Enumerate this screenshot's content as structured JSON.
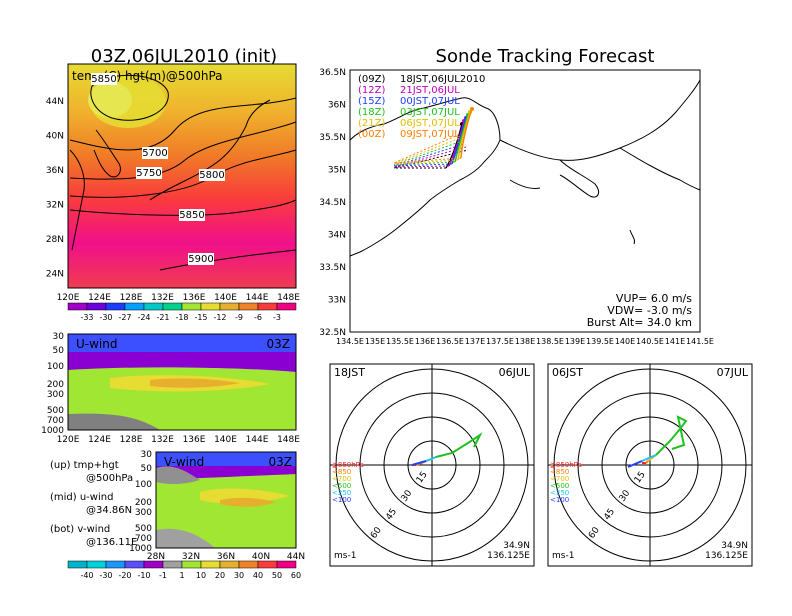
{
  "title_left": "03Z,06JUL2010 (init)",
  "title_right": "Sonde Tracking Forecast",
  "temp_map": {
    "label": "temp(C) hgt(m)@500hPa",
    "lat_ticks": [
      "44N",
      "40N",
      "36N",
      "32N",
      "28N",
      "24N"
    ],
    "lon_ticks": [
      "120E",
      "124E",
      "128E",
      "132E",
      "136E",
      "140E",
      "144E",
      "148E"
    ],
    "contour_labels": [
      "5850",
      "5700",
      "5750",
      "5800",
      "5850",
      "5900"
    ],
    "colorbar_labels": [
      "-33",
      "-30",
      "-27",
      "-24",
      "-21",
      "-18",
      "-15",
      "-12",
      "-9",
      "-6",
      "-3"
    ],
    "colorbar_colors": [
      "#a000c8",
      "#6e00dc",
      "#1e3cff",
      "#00a0ff",
      "#00c8c8",
      "#00d28c",
      "#a0e632",
      "#e6dc32",
      "#e6af2d",
      "#f08228",
      "#fa3c3c",
      "#f00082"
    ]
  },
  "uwind": {
    "label": "U-wind",
    "time": "03Z",
    "p_ticks": [
      "30",
      "50",
      "100",
      "200",
      "300",
      "500",
      "700",
      "1000"
    ],
    "lon_ticks": [
      "120E",
      "124E",
      "128E",
      "132E",
      "136E",
      "140E",
      "144E",
      "148E"
    ]
  },
  "vwind": {
    "label": "V-wind",
    "time": "03Z",
    "p_ticks": [
      "30",
      "50",
      "100",
      "200",
      "300",
      "500",
      "700",
      "1000"
    ],
    "lat_ticks": [
      "28N",
      "32N",
      "36N",
      "40N",
      "44N"
    ]
  },
  "legend_notes": [
    {
      "a": "(up) tmp+hgt",
      "b": "@500hPa"
    },
    {
      "a": "(mid) u-wind",
      "b": "@34.86N"
    },
    {
      "a": "(bot) v-wind",
      "b": "@136.11E"
    }
  ],
  "wind_colorbar": {
    "labels": [
      "-40",
      "-30",
      "-20",
      "-10",
      "-1",
      "1",
      "10",
      "20",
      "30",
      "40",
      "50",
      "60"
    ],
    "colors": [
      "#00b4c8",
      "#00d2dc",
      "#1e96ff",
      "#5a50ff",
      "#a000c8",
      "#a0a0a0",
      "#a0e632",
      "#e6dc32",
      "#e6af2d",
      "#f08228",
      "#fa3c3c",
      "#f00082"
    ]
  },
  "track_map": {
    "lat_ticks": [
      "36.5N",
      "36N",
      "35.5N",
      "35N",
      "34.5N",
      "34N",
      "33.5N",
      "33N",
      "32.5N"
    ],
    "lon_ticks": [
      "134.5E",
      "135E",
      "135.5E",
      "136E",
      "136.5E",
      "137E",
      "137.5E",
      "138E",
      "138.5E",
      "139E",
      "139.5E",
      "140E",
      "140.5E",
      "141E",
      "141.5E"
    ],
    "launches": [
      {
        "init": "(09Z)",
        "time": "18JST,06JUL2010",
        "color": "#000000"
      },
      {
        "init": "(12Z)",
        "time": "21JST,06JUL",
        "color": "#c000c0"
      },
      {
        "init": "(15Z)",
        "time": "00JST,07JUL",
        "color": "#2040ff"
      },
      {
        "init": "(18Z)",
        "time": "03JST,07JUL",
        "color": "#20c020"
      },
      {
        "init": "(21Z)",
        "time": "06JST,07JUL",
        "color": "#e0c000"
      },
      {
        "init": "(00Z)",
        "time": "09JST,07JUL",
        "color": "#ff8000"
      }
    ],
    "vup": "VUP= 6.0 m/s",
    "vdw": "VDW= -3.0 m/s",
    "burst": "Burst Alt= 34.0 km"
  },
  "hodo_left": {
    "time": "18JST",
    "date": "06JUL",
    "rings": [
      "15",
      "30",
      "45",
      "60"
    ],
    "unit": "ms-1",
    "lat": "34.9N",
    "lon": "136.125E",
    "levels": [
      {
        "label": "≧850hPa",
        "color": "#ff2020"
      },
      {
        "label": "<850",
        "color": "#ff8000"
      },
      {
        "label": "<700",
        "color": "#e0c000"
      },
      {
        "label": "<500",
        "color": "#20c020"
      },
      {
        "label": "<250",
        "color": "#20c0ff"
      },
      {
        "label": "<100",
        "color": "#2040ff"
      }
    ]
  },
  "hodo_right": {
    "time": "06JST",
    "date": "07JUL",
    "rings": [
      "15",
      "30",
      "45",
      "60"
    ],
    "unit": "ms-1",
    "lat": "34.9N",
    "lon": "136.125E",
    "levels": [
      {
        "label": "≧850hPa",
        "color": "#ff2020"
      },
      {
        "label": "<850",
        "color": "#ff8000"
      },
      {
        "label": "<700",
        "color": "#e0c000"
      },
      {
        "label": "<500",
        "color": "#20c020"
      },
      {
        "label": "<250",
        "color": "#20c0ff"
      },
      {
        "label": "<100",
        "color": "#2040ff"
      }
    ]
  }
}
